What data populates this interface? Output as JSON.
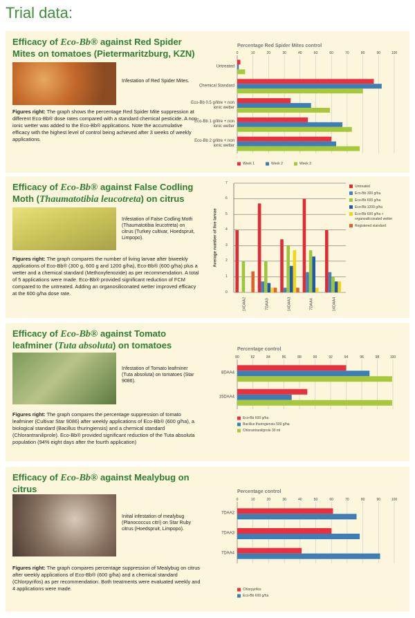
{
  "page": {
    "title": "Trial data:",
    "sections": [
      {
        "heading": [
          "Efficacy of ",
          "Eco-Bb®",
          " against Red Spider Mites on tomatoes (Pietermaritzburg, KZN)"
        ],
        "caption": "Infestation of Red Spider Mites.",
        "lead": "Figures right:",
        "text": "The graph shows the percentage Red Spider Mite suppression at different Eco-Bb® dose rates compared with a standard chemical pesticide. A non-ionic wetter was added to the Eco-Bb® applications. Note the accumulative efficacy with the highest level of control being achieved after 3 weeks of weekly applications."
      },
      {
        "heading": [
          "Efficacy of ",
          "Eco-Bb®",
          " against False Codling Moth (",
          "Thaumatotibia leucotreta",
          ") on citrus"
        ],
        "caption": "Infestation of False Codling Moth (Thaumatotibia leucotreta) on citrus (Turkey cultivar, Hoedspruit, Limpopo).",
        "lead": "Figures right:",
        "text": "The graph compares the number of living larvae after biweekly applications of Eco-Bb® (300 g, 600 g and 1200 g/ha), Eco-Bb® (600 g/ha) plus a wetter and a chemical standard (Methoxyfenozide) as per recommendation. A total of 5 applications were made. Eco-Bb® provided significant reduction of FCM compared to the untreated. Adding an organosiliconated wetter improved efficacy at the 600 g/ha dose rate."
      },
      {
        "heading": [
          "Efficacy of ",
          "Eco-Bb®",
          " against Tomato leafminer (",
          "Tuta absoluta",
          ") on tomatoes"
        ],
        "caption": "Infestation of Tomato leafminer (Tuta absoluta) on tomatoes (Star 9086).",
        "lead": "Figures right:",
        "text": "The graph compares the percentage suppression of tomato leafminer (Cultivar Star 9086) after weekly applications of Eco-Bb® (600 g/ha), a biological standard (Bacillus thuringiensis) and a chemical standard (Chlorantraniliprole). Eco-Bb® provided significant reduction of the Tuta absoluta population (94% eight days after the fourth application)"
      },
      {
        "heading": [
          "Efficacy of ",
          "Eco-Bb®",
          " against Mealybug on citrus"
        ],
        "caption": "Initial infestation of mealybug (Planococcus citri) on Star Ruby citrus (Hoedspruit, Limpopo).",
        "lead": "Figures right:",
        "text": "The graph compares percentage suppression of Mealybug on citrus after weekly applications of Eco-Bb® (600 g/ha) and a chemical standard (Chlorpyrifos) as per recommendation. Both treatments were evaluated weekly and 4 applications were made."
      }
    ]
  },
  "chart_data": [
    {
      "type": "hbar",
      "title": "Percentage Red Spider Mites control",
      "categories": [
        "Untreated",
        "Chemical Standard",
        "Eco-Bb 0.5 g/litre + non ionic wetter",
        "Eco-Bb 1 g/litre + non ionic wetter",
        "Eco-Bb 2 g/litre + non ionic wetter"
      ],
      "series": [
        {
          "name": "Week 1",
          "color": "#e8303f",
          "values": [
            2,
            87,
            34,
            45,
            60
          ]
        },
        {
          "name": "Week 2",
          "color": "#3d7fb5",
          "values": [
            1,
            92,
            47,
            67,
            63
          ]
        },
        {
          "name": "Week 3",
          "color": "#a6c83a",
          "values": [
            5,
            80,
            59,
            73,
            78
          ]
        }
      ],
      "xlim": [
        0,
        100
      ],
      "xticks": [
        0,
        10,
        20,
        30,
        40,
        50,
        60,
        70,
        80,
        90,
        100
      ],
      "grid": true,
      "legend": "bottom"
    },
    {
      "type": "bar",
      "ylabel": "Average number of live larvae",
      "categories": [
        "14DAA2",
        "7DAA3",
        "14DAA3",
        "7DAA4",
        "14DAA4"
      ],
      "series": [
        {
          "name": "Untreated",
          "color": "#e02a36",
          "values": [
            4,
            5.7,
            3.4,
            6,
            4
          ]
        },
        {
          "name": "Eco-Bb 300 g/ha",
          "color": "#3f84b8",
          "values": [
            0,
            0.7,
            0.3,
            1.3,
            1.3
          ]
        },
        {
          "name": "Eco-Bb 600 g/ha",
          "color": "#9fc53b",
          "values": [
            2,
            2,
            3,
            2.7,
            1
          ]
        },
        {
          "name": "Eco-Bb 1200 g/ha",
          "color": "#1e5aa8",
          "values": [
            0,
            0.6,
            1.7,
            2.3,
            0.7
          ]
        },
        {
          "name": "Eco-Bb 600 g/ha + organosiliconated wetter",
          "color": "#f5d316",
          "values": [
            0,
            0.3,
            2.7,
            0.3,
            0.7
          ]
        },
        {
          "name": "Registered standard",
          "color": "#e0622a",
          "values": [
            1.35,
            0.3,
            0.3,
            0,
            0
          ]
        }
      ],
      "ylim": [
        0,
        7
      ],
      "yticks": [
        0,
        1,
        2,
        3,
        4,
        5,
        6,
        7
      ],
      "grid": true,
      "legend": "right"
    },
    {
      "type": "hbar",
      "title": "Percentage control",
      "categories": [
        "8DAA4",
        "15DAA4"
      ],
      "series": [
        {
          "name": "Eco-Bb 600 g/ha",
          "color": "#e8303f",
          "values": [
            94,
            89
          ]
        },
        {
          "name": "Bacillus thuringiensis 500 g/ha",
          "color": "#3d7fb5",
          "values": [
            97,
            87
          ]
        },
        {
          "name": "Chlorantraniliprole 30 ml",
          "color": "#a6c83a",
          "values": [
            99.9,
            99.9
          ]
        }
      ],
      "xlim": [
        80,
        100
      ],
      "xticks": [
        80,
        82,
        84,
        86,
        88,
        90,
        92,
        94,
        96,
        98,
        100
      ],
      "grid": true,
      "legend": "bottom"
    },
    {
      "type": "hbar",
      "title": "Percentage control",
      "categories": [
        "7DAA2",
        "7DAA3",
        "7DAA4"
      ],
      "series": [
        {
          "name": "Chlorpyrifos",
          "color": "#e8303f",
          "values": [
            61,
            60,
            41
          ]
        },
        {
          "name": "Eco-Bb 600 g/ha",
          "color": "#3d7fb5",
          "values": [
            76,
            78,
            91
          ]
        }
      ],
      "xlim": [
        0,
        100
      ],
      "xticks": [
        0,
        10,
        20,
        30,
        40,
        50,
        60,
        70,
        80,
        90,
        100
      ],
      "grid": true,
      "legend": "bottom"
    }
  ]
}
